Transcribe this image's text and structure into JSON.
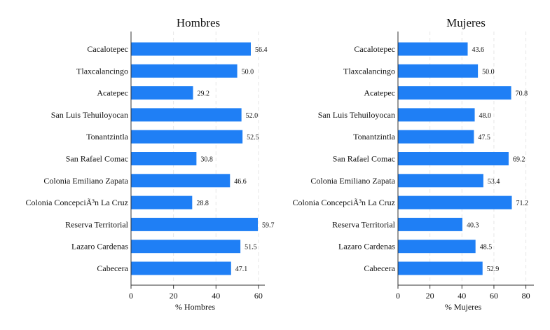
{
  "colors": {
    "bar": "#1f7ff5",
    "axis": "#333333",
    "grid": "#e6e6e6",
    "text": "#111111"
  },
  "chart_data": [
    {
      "type": "bar",
      "orientation": "horizontal",
      "title": "Hombres",
      "xlabel": "% Hombres",
      "ylabel": "",
      "categories": [
        "Cacalotepec",
        "Tlaxcalancingo",
        "Acatepec",
        "San Luis Tehuiloyocan",
        "Tonantzintla",
        "San Rafael Comac",
        "Colonia Emiliano Zapata",
        "Colonia ConcepciÃ³n La Cruz",
        "Reserva Territorial",
        "Lazaro Cardenas",
        "Cabecera"
      ],
      "values": [
        56.4,
        50.0,
        29.2,
        52.0,
        52.5,
        30.8,
        46.6,
        28.8,
        59.7,
        51.5,
        47.1
      ],
      "value_labels": [
        "56.4",
        "50.0",
        "29.2",
        "52.0",
        "52.5",
        "30.8",
        "46.6",
        "28.8",
        "59.7",
        "51.5",
        "47.1"
      ],
      "xlim": [
        0,
        63
      ],
      "xticks": [
        0,
        20,
        40,
        60
      ],
      "xtick_labels": [
        "0",
        "20",
        "40",
        "60"
      ],
      "grid": true
    },
    {
      "type": "bar",
      "orientation": "horizontal",
      "title": "Mujeres",
      "xlabel": "% Mujeres",
      "ylabel": "",
      "categories": [
        "Cacalotepec",
        "Tlaxcalancingo",
        "Acatepec",
        "San Luis Tehuiloyocan",
        "Tonantzintla",
        "San Rafael Comac",
        "Colonia Emiliano Zapata",
        "Colonia ConcepciÃ³n La Cruz",
        "Reserva Territorial",
        "Lazaro Cardenas",
        "Cabecera"
      ],
      "values": [
        43.6,
        50.0,
        70.8,
        48.0,
        47.5,
        69.2,
        53.4,
        71.2,
        40.3,
        48.5,
        52.9
      ],
      "value_labels": [
        "43.6",
        "50.0",
        "70.8",
        "48.0",
        "47.5",
        "69.2",
        "53.4",
        "71.2",
        "40.3",
        "48.5",
        "52.9"
      ],
      "xlim": [
        0,
        85
      ],
      "xticks": [
        0,
        20,
        40,
        60,
        80
      ],
      "xtick_labels": [
        "0",
        "20",
        "40",
        "60",
        "80"
      ],
      "grid": true
    }
  ]
}
